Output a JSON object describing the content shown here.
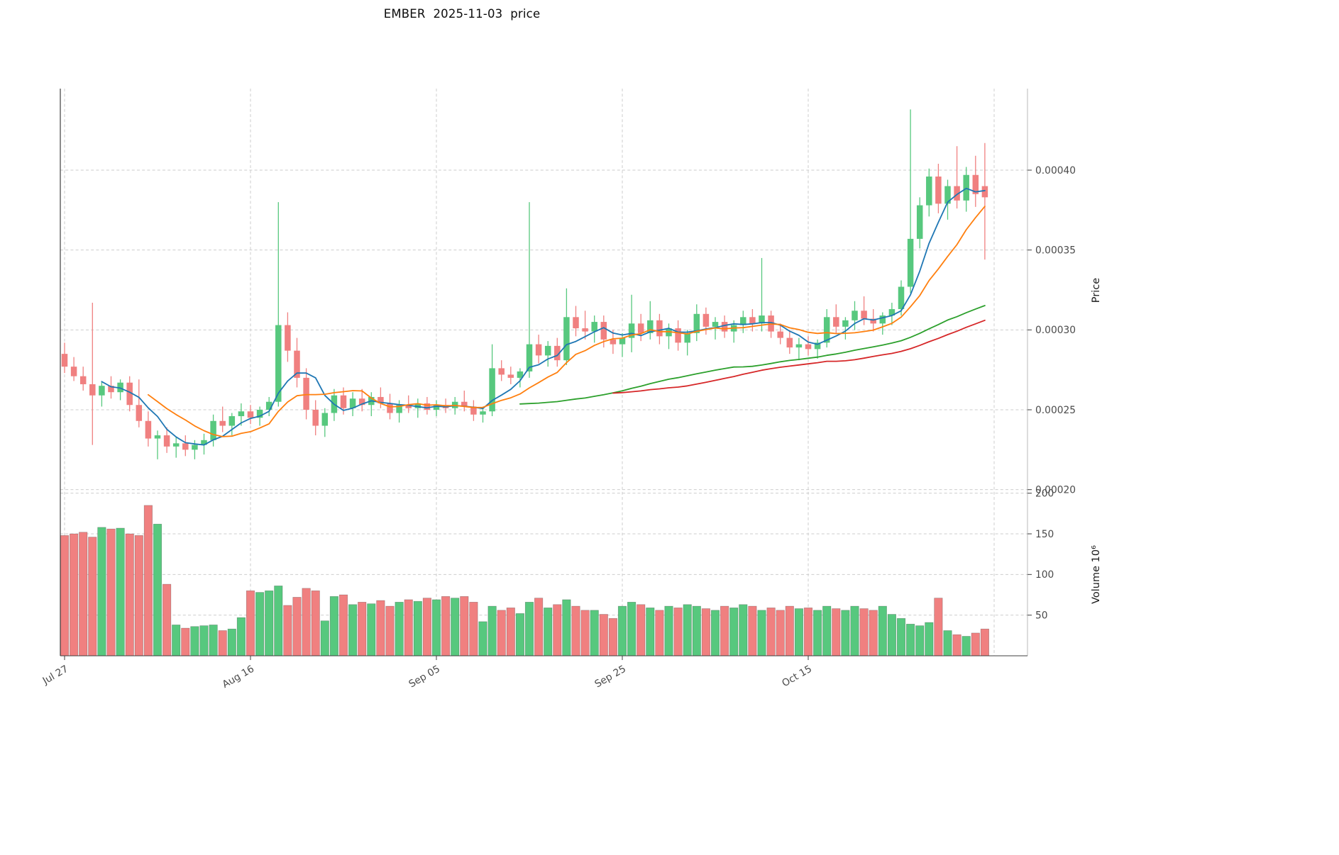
{
  "chart_data": {
    "type": "candlestick",
    "title": "EMBER  2025-11-03  price",
    "price_axis": {
      "label": "Price",
      "unit": "1e-6",
      "tick_values": [
        200,
        250,
        300,
        350,
        400
      ],
      "tick_labels": [
        "0.00020",
        "0.00025",
        "0.00030",
        "0.00035",
        "0.00040"
      ]
    },
    "volume_axis": {
      "label": "Volume 10⁶",
      "unit": "millions",
      "tick_values": [
        50,
        100,
        150,
        200
      ],
      "tick_labels": [
        "50",
        "100",
        "150",
        "200"
      ]
    },
    "x_axis": {
      "tick_indices": [
        0,
        20,
        40,
        60,
        80,
        100
      ],
      "tick_labels": [
        "Jul 27",
        "Aug 16",
        "Sep 05",
        "Sep 25",
        "Oct 15",
        ""
      ]
    },
    "moving_averages": [
      {
        "window": 5,
        "color": "#1f77b4"
      },
      {
        "window": 10,
        "color": "#ff7f0e"
      },
      {
        "window": 50,
        "color": "#2ca02c"
      },
      {
        "window": 60,
        "color": "#d62728"
      }
    ],
    "colors": {
      "up": "#57c87e",
      "down": "#f08080",
      "grid": "#cdcdcd",
      "axis_text": "#4a4a4a",
      "spine": "#3f3f3f"
    },
    "columns": [
      "date",
      "open",
      "high",
      "low",
      "close",
      "volume_millions"
    ],
    "candles": [
      [
        "2025-07-27",
        285,
        292,
        273,
        277,
        148
      ],
      [
        "2025-07-28",
        277,
        283,
        268,
        271,
        150
      ],
      [
        "2025-07-29",
        271,
        277,
        262,
        266,
        152
      ],
      [
        "2025-07-30",
        266,
        317,
        228,
        259,
        146
      ],
      [
        "2025-07-31",
        259,
        268,
        252,
        265,
        158
      ],
      [
        "2025-08-01",
        265,
        271,
        257,
        261,
        156
      ],
      [
        "2025-08-02",
        261,
        269,
        256,
        267,
        157
      ],
      [
        "2025-08-03",
        267,
        271,
        249,
        253,
        150
      ],
      [
        "2025-08-04",
        253,
        269,
        239,
        243,
        148
      ],
      [
        "2025-08-05",
        243,
        249,
        227,
        232,
        185
      ],
      [
        "2025-08-06",
        232,
        237,
        219,
        234,
        162
      ],
      [
        "2025-08-07",
        234,
        239,
        223,
        227,
        88
      ],
      [
        "2025-08-08",
        227,
        233,
        220,
        229,
        38
      ],
      [
        "2025-08-09",
        229,
        234,
        221,
        225,
        34
      ],
      [
        "2025-08-10",
        225,
        231,
        219,
        228,
        36
      ],
      [
        "2025-08-11",
        228,
        235,
        222,
        231,
        37
      ],
      [
        "2025-08-12",
        231,
        247,
        227,
        243,
        38
      ],
      [
        "2025-08-13",
        243,
        252,
        236,
        240,
        31
      ],
      [
        "2025-08-14",
        240,
        248,
        234,
        246,
        33
      ],
      [
        "2025-08-15",
        246,
        254,
        240,
        249,
        47
      ],
      [
        "2025-08-16",
        249,
        253,
        241,
        245,
        80
      ],
      [
        "2025-08-17",
        245,
        252,
        240,
        250,
        78
      ],
      [
        "2025-08-18",
        250,
        258,
        246,
        255,
        80
      ],
      [
        "2025-08-19",
        255,
        380,
        252,
        303,
        86
      ],
      [
        "2025-08-20",
        303,
        311,
        280,
        287,
        62
      ],
      [
        "2025-08-21",
        287,
        295,
        264,
        270,
        72
      ],
      [
        "2025-08-22",
        270,
        276,
        244,
        250,
        83
      ],
      [
        "2025-08-23",
        250,
        256,
        234,
        240,
        80
      ],
      [
        "2025-08-24",
        240,
        251,
        233,
        248,
        43
      ],
      [
        "2025-08-25",
        248,
        263,
        243,
        259,
        73
      ],
      [
        "2025-08-26",
        259,
        264,
        247,
        251,
        75
      ],
      [
        "2025-08-27",
        251,
        261,
        246,
        257,
        63
      ],
      [
        "2025-08-28",
        257,
        263,
        249,
        253,
        66
      ],
      [
        "2025-08-29",
        253,
        261,
        246,
        258,
        64
      ],
      [
        "2025-08-30",
        258,
        264,
        251,
        254,
        68
      ],
      [
        "2025-08-31",
        254,
        260,
        244,
        248,
        61
      ],
      [
        "2025-09-01",
        248,
        256,
        242,
        253,
        66
      ],
      [
        "2025-09-02",
        253,
        259,
        248,
        251,
        69
      ],
      [
        "2025-09-03",
        251,
        257,
        245,
        254,
        67
      ],
      [
        "2025-09-04",
        254,
        258,
        247,
        250,
        71
      ],
      [
        "2025-09-05",
        250,
        256,
        246,
        253,
        69
      ],
      [
        "2025-09-06",
        253,
        257,
        248,
        251,
        73
      ],
      [
        "2025-09-07",
        251,
        258,
        247,
        255,
        71
      ],
      [
        "2025-09-08",
        255,
        262,
        249,
        252,
        73
      ],
      [
        "2025-09-09",
        252,
        256,
        243,
        247,
        66
      ],
      [
        "2025-09-10",
        247,
        252,
        242,
        249,
        42
      ],
      [
        "2025-09-11",
        249,
        291,
        246,
        276,
        61
      ],
      [
        "2025-09-12",
        276,
        281,
        268,
        272,
        56
      ],
      [
        "2025-09-13",
        272,
        277,
        266,
        270,
        59
      ],
      [
        "2025-09-14",
        270,
        276,
        264,
        274,
        52
      ],
      [
        "2025-09-15",
        274,
        380,
        270,
        291,
        66
      ],
      [
        "2025-09-16",
        291,
        297,
        279,
        284,
        71
      ],
      [
        "2025-09-17",
        284,
        293,
        277,
        290,
        59
      ],
      [
        "2025-09-18",
        290,
        295,
        277,
        281,
        63
      ],
      [
        "2025-09-19",
        281,
        326,
        278,
        308,
        69
      ],
      [
        "2025-09-20",
        308,
        315,
        296,
        301,
        61
      ],
      [
        "2025-09-21",
        301,
        312,
        294,
        299,
        56
      ],
      [
        "2025-09-22",
        299,
        309,
        292,
        305,
        56
      ],
      [
        "2025-09-23",
        305,
        309,
        289,
        294,
        51
      ],
      [
        "2025-09-24",
        294,
        300,
        285,
        291,
        46
      ],
      [
        "2025-09-25",
        291,
        298,
        283,
        295,
        61
      ],
      [
        "2025-09-26",
        295,
        322,
        286,
        304,
        66
      ],
      [
        "2025-09-27",
        304,
        310,
        293,
        298,
        63
      ],
      [
        "2025-09-28",
        298,
        318,
        294,
        306,
        59
      ],
      [
        "2025-09-29",
        306,
        310,
        291,
        296,
        56
      ],
      [
        "2025-09-30",
        296,
        304,
        288,
        301,
        61
      ],
      [
        "2025-10-01",
        301,
        306,
        287,
        292,
        59
      ],
      [
        "2025-10-02",
        292,
        300,
        284,
        298,
        63
      ],
      [
        "2025-10-03",
        298,
        316,
        293,
        310,
        61
      ],
      [
        "2025-10-04",
        310,
        314,
        297,
        302,
        58
      ],
      [
        "2025-10-05",
        302,
        308,
        294,
        305,
        56
      ],
      [
        "2025-10-06",
        305,
        309,
        295,
        299,
        61
      ],
      [
        "2025-10-07",
        299,
        306,
        292,
        303,
        59
      ],
      [
        "2025-10-08",
        303,
        312,
        298,
        308,
        63
      ],
      [
        "2025-10-09",
        308,
        313,
        299,
        304,
        61
      ],
      [
        "2025-10-10",
        304,
        345,
        299,
        309,
        56
      ],
      [
        "2025-10-11",
        309,
        312,
        295,
        299,
        59
      ],
      [
        "2025-10-12",
        299,
        304,
        291,
        295,
        56
      ],
      [
        "2025-10-13",
        295,
        300,
        285,
        289,
        61
      ],
      [
        "2025-10-14",
        289,
        295,
        281,
        291,
        58
      ],
      [
        "2025-10-15",
        291,
        296,
        284,
        288,
        59
      ],
      [
        "2025-10-16",
        288,
        294,
        282,
        292,
        56
      ],
      [
        "2025-10-17",
        292,
        313,
        289,
        308,
        61
      ],
      [
        "2025-10-18",
        308,
        316,
        298,
        302,
        58
      ],
      [
        "2025-10-19",
        302,
        308,
        294,
        306,
        56
      ],
      [
        "2025-10-20",
        306,
        318,
        300,
        312,
        61
      ],
      [
        "2025-10-21",
        312,
        321,
        303,
        307,
        58
      ],
      [
        "2025-10-22",
        307,
        313,
        299,
        304,
        56
      ],
      [
        "2025-10-23",
        304,
        311,
        297,
        309,
        61
      ],
      [
        "2025-10-24",
        309,
        317,
        303,
        313,
        51
      ],
      [
        "2025-10-25",
        313,
        331,
        309,
        327,
        46
      ],
      [
        "2025-10-26",
        327,
        438,
        323,
        357,
        39
      ],
      [
        "2025-10-27",
        357,
        383,
        351,
        378,
        37
      ],
      [
        "2025-10-28",
        378,
        401,
        371,
        396,
        41
      ],
      [
        "2025-10-29",
        396,
        404,
        373,
        379,
        71
      ],
      [
        "2025-10-30",
        379,
        394,
        369,
        390,
        31
      ],
      [
        "2025-10-31",
        390,
        415,
        376,
        381,
        26
      ],
      [
        "2025-11-01",
        381,
        402,
        374,
        397,
        24
      ],
      [
        "2025-11-02",
        397,
        409,
        377,
        385,
        28
      ],
      [
        "2025-11-03",
        390,
        417,
        344,
        383,
        33
      ]
    ]
  }
}
